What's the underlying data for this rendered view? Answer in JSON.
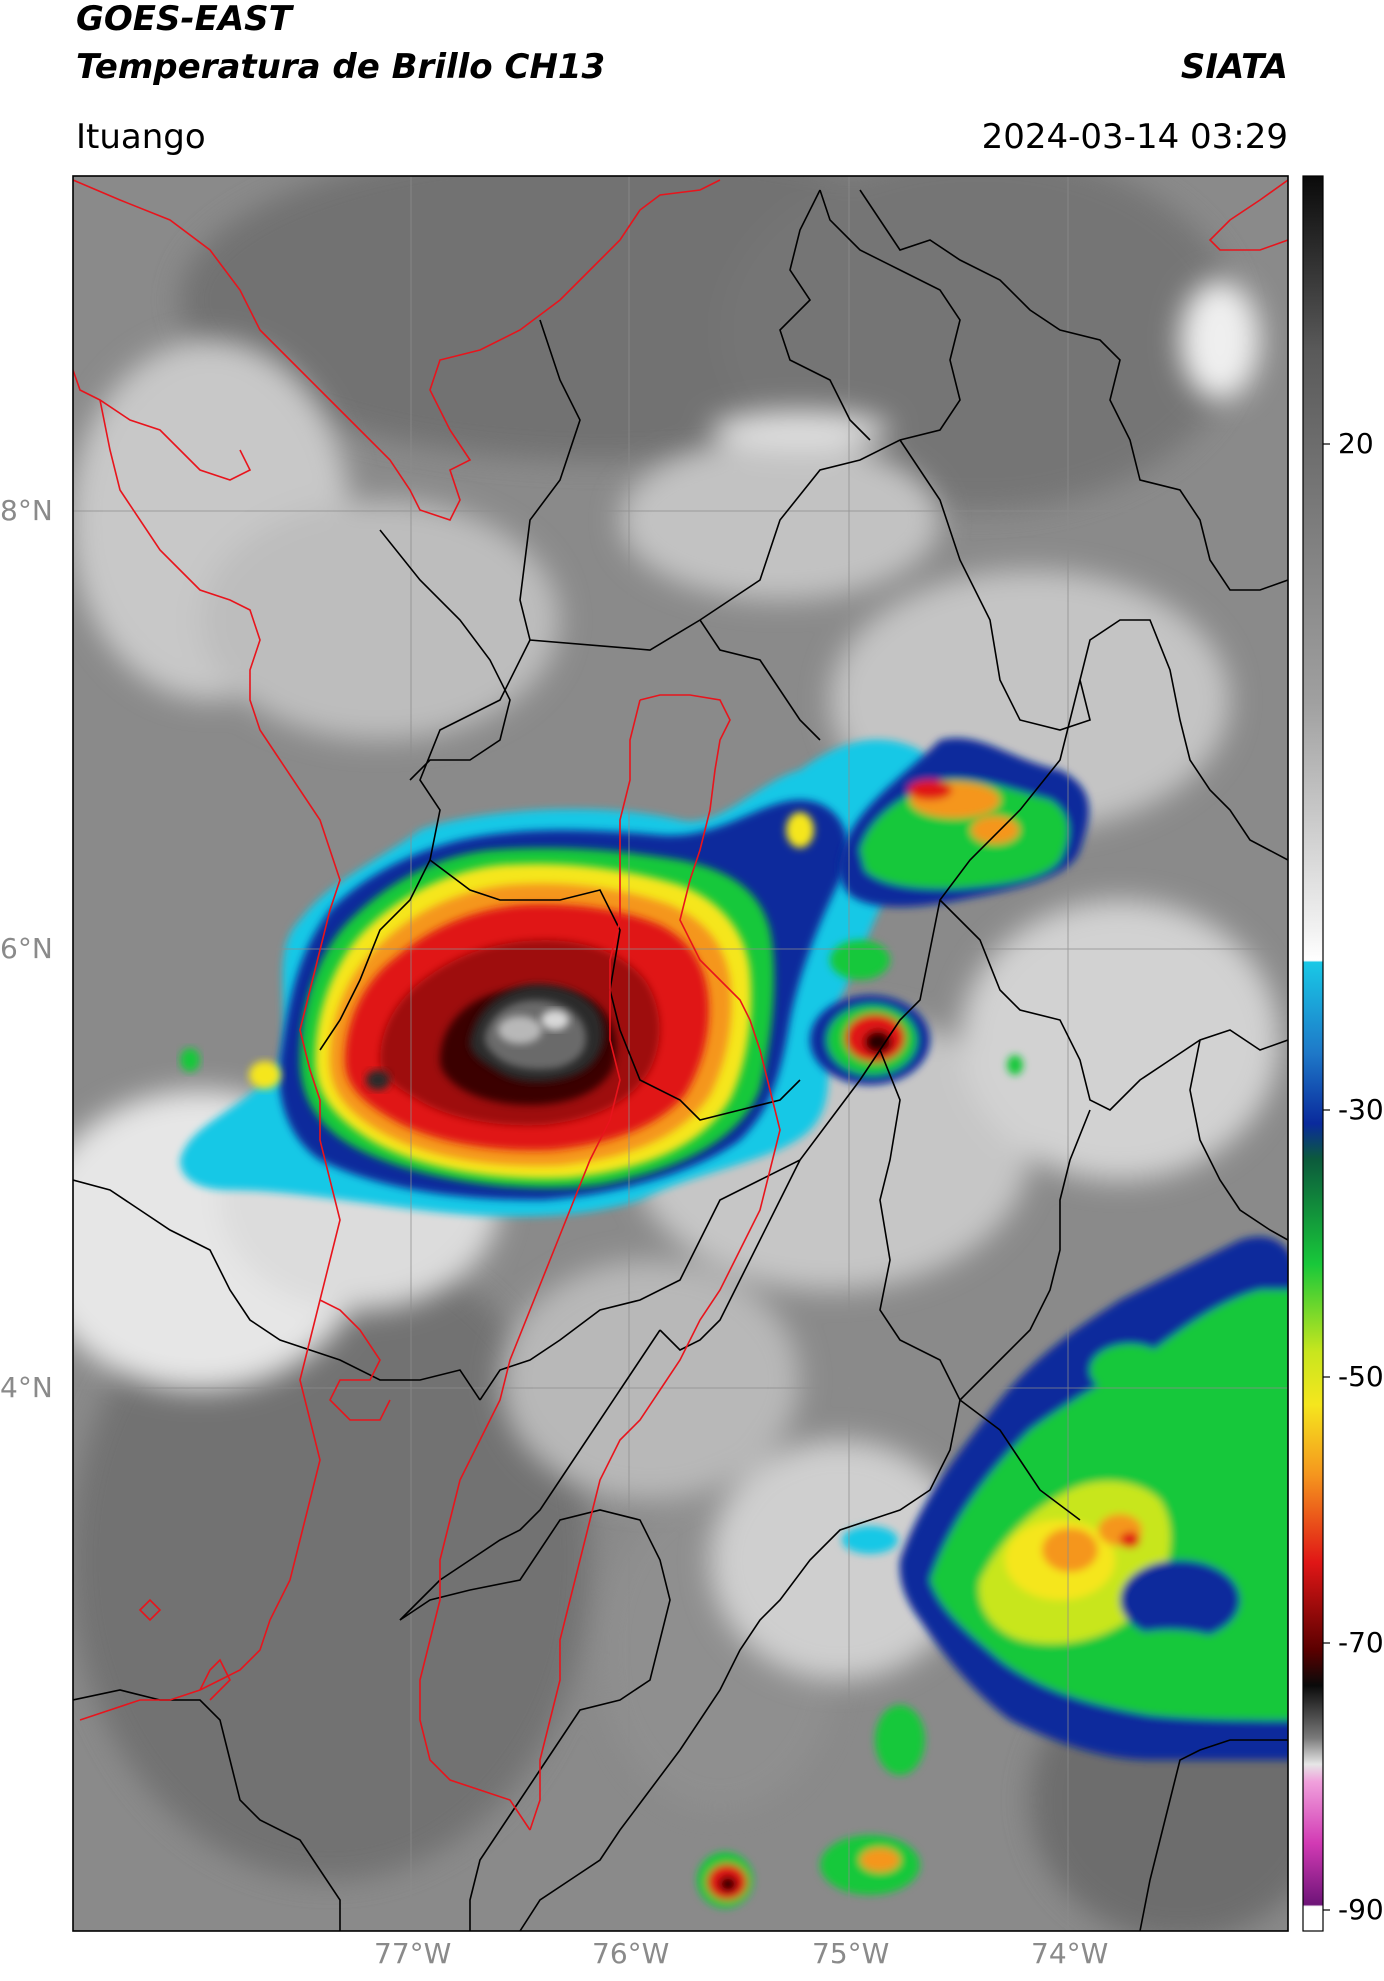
{
  "header": {
    "satellite": "GOES-EAST",
    "product": "Temperatura de Brillo CH13",
    "organization": "SIATA",
    "location": "Ituango",
    "datetime": "2024-03-14 03:29"
  },
  "map": {
    "lat_ticks": [
      "8°N",
      "6°N",
      "4°N"
    ],
    "lon_ticks": [
      "77°W",
      "76°W",
      "75°W",
      "74°W"
    ],
    "border_colors": {
      "country_and_basin": "#e8141c",
      "departments": "#000000"
    }
  },
  "colorbar": {
    "ticks": [
      "20",
      "-30",
      "-50",
      "-70",
      "-90"
    ],
    "colors": {
      "warm_gray": "#6f6f6f",
      "white": "#ffffff",
      "cyan": "#19c8e6",
      "blue": "#0a2a9c",
      "green": "#18c83a",
      "yellow": "#f5e61e",
      "orange": "#f5961e",
      "red": "#e01616",
      "dark_red": "#5a0000",
      "black": "#0a0a0a",
      "magenta": "#d23ab4",
      "purple": "#6e1478"
    }
  }
}
